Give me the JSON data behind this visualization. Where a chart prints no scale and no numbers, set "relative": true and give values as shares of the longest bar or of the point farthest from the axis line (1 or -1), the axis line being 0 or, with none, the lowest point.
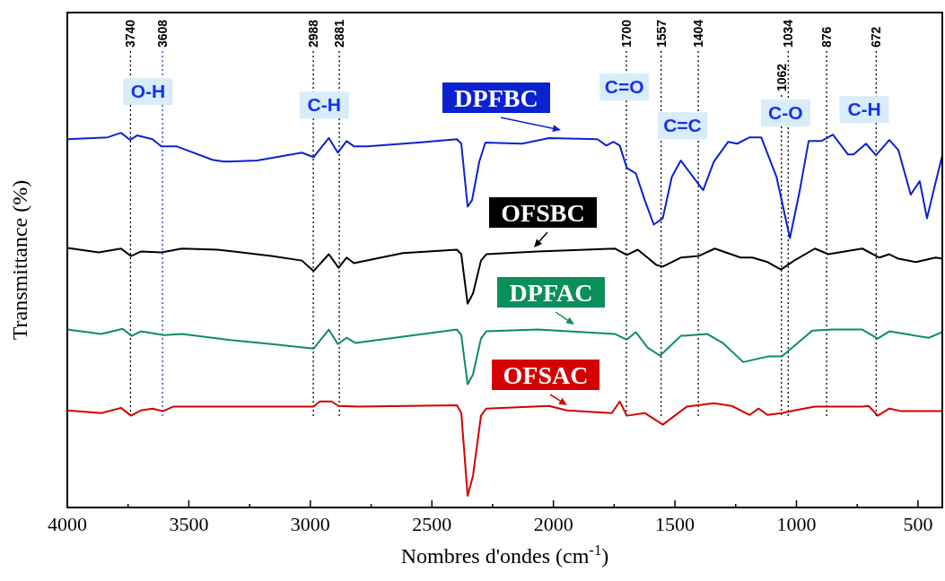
{
  "chart_data": {
    "type": "line",
    "relative": true,
    "xlabel": "Nombres d'ondes (cm$^{-1}$)",
    "ylabel": "Transmittance (%)",
    "xlim": [
      4000,
      400
    ],
    "xticks": [
      4000,
      {
        "value": 3750,
        "label": null
      },
      3500,
      {
        "value": 3250,
        "label": null
      },
      3000,
      {
        "value": 2750,
        "label": null
      },
      2500,
      {
        "value": 2250,
        "label": null
      },
      2000,
      {
        "value": 1750,
        "label": null
      },
      1500,
      {
        "value": 1250,
        "label": null
      },
      1000,
      {
        "value": 750,
        "label": null
      },
      500
    ],
    "grid": false,
    "marker": "none",
    "line_style": "solid",
    "series": [
      {
        "name": "DPFBC",
        "color": "#0a22d0",
        "x": [
          4000,
          3834,
          3779,
          3742,
          3713,
          3650,
          3613,
          3551,
          3403,
          3355,
          3219,
          3035,
          2987,
          2924,
          2887,
          2851,
          2821,
          2766,
          2556,
          2397,
          2379,
          2353,
          2335,
          2305,
          2280,
          2129,
          2018,
          1819,
          1782,
          1753,
          1727,
          1698,
          1661,
          1624,
          1587,
          1550,
          1513,
          1476,
          1403,
          1384,
          1340,
          1281,
          1244,
          1193,
          1145,
          1082,
          1027,
          987,
          950,
          898,
          850,
          788,
          765,
          714,
          673,
          618,
          581,
          530,
          493,
          463,
          434,
          400
        ],
        "values": [
          0.983,
          0.988,
          1.0,
          0.981,
          0.993,
          0.983,
          0.964,
          0.964,
          0.928,
          0.923,
          0.926,
          0.947,
          0.935,
          0.986,
          0.947,
          0.978,
          0.964,
          0.964,
          0.974,
          0.983,
          0.971,
          0.803,
          0.82,
          0.923,
          0.974,
          0.971,
          0.986,
          0.983,
          0.966,
          0.976,
          0.966,
          0.906,
          0.892,
          0.82,
          0.755,
          0.772,
          0.882,
          0.926,
          0.863,
          0.847,
          0.923,
          0.976,
          0.971,
          0.988,
          0.988,
          0.882,
          0.719,
          0.844,
          0.978,
          0.978,
          0.995,
          0.942,
          0.942,
          0.971,
          0.94,
          0.981,
          0.954,
          0.835,
          0.871,
          0.772,
          0.851,
          0.94
        ]
      },
      {
        "name": "OFSBC",
        "color": "#000000",
        "x": [
          4000,
          3871,
          3779,
          3738,
          3698,
          3613,
          3528,
          3381,
          3160,
          3035,
          2987,
          2924,
          2884,
          2851,
          2821,
          2619,
          2397,
          2379,
          2353,
          2331,
          2298,
          2276,
          2066,
          1746,
          1698,
          1653,
          1613,
          1576,
          1550,
          1476,
          1403,
          1336,
          1230,
          1182,
          1119,
          1064,
          1009,
          924,
          869,
          729,
          659,
          618,
          581,
          508,
          427,
          400
        ],
        "values": [
          0.693,
          0.681,
          0.691,
          0.671,
          0.683,
          0.681,
          0.691,
          0.688,
          0.671,
          0.659,
          0.631,
          0.676,
          0.64,
          0.667,
          0.652,
          0.679,
          0.688,
          0.676,
          0.544,
          0.571,
          0.659,
          0.676,
          0.683,
          0.691,
          0.674,
          0.688,
          0.667,
          0.647,
          0.643,
          0.667,
          0.671,
          0.691,
          0.667,
          0.667,
          0.655,
          0.635,
          0.659,
          0.691,
          0.676,
          0.691,
          0.667,
          0.676,
          0.664,
          0.655,
          0.667,
          0.664
        ]
      },
      {
        "name": "DPFAC",
        "color": "#0a8f5a",
        "x": [
          4000,
          3860,
          3772,
          3735,
          3698,
          3602,
          3528,
          3344,
          3160,
          2987,
          2924,
          2887,
          2851,
          2814,
          2619,
          2397,
          2379,
          2353,
          2331,
          2298,
          2276,
          2066,
          1746,
          1698,
          1661,
          1613,
          1561,
          1476,
          1366,
          1303,
          1219,
          1119,
          1060,
          935,
          850,
          729,
          666,
          618,
          456,
          400
        ],
        "values": [
          0.475,
          0.463,
          0.477,
          0.458,
          0.47,
          0.46,
          0.463,
          0.448,
          0.436,
          0.424,
          0.475,
          0.436,
          0.453,
          0.439,
          0.456,
          0.475,
          0.46,
          0.329,
          0.355,
          0.451,
          0.47,
          0.475,
          0.463,
          0.448,
          0.468,
          0.427,
          0.405,
          0.458,
          0.463,
          0.439,
          0.388,
          0.403,
          0.403,
          0.472,
          0.475,
          0.475,
          0.451,
          0.47,
          0.453,
          0.468
        ]
      },
      {
        "name": "OFSAC",
        "color": "#d40000",
        "x": [
          4000,
          3860,
          3779,
          3738,
          3698,
          3650,
          3606,
          3565,
          2987,
          2961,
          2913,
          2884,
          2803,
          2397,
          2379,
          2353,
          2331,
          2298,
          2276,
          2018,
          1944,
          1760,
          1727,
          1698,
          1624,
          1550,
          1451,
          1340,
          1266,
          1193,
          1156,
          1119,
          1060,
          1009,
          924,
          729,
          703,
          666,
          618,
          567,
          400
        ],
        "values": [
          0.259,
          0.252,
          0.266,
          0.245,
          0.259,
          0.264,
          0.257,
          0.269,
          0.269,
          0.283,
          0.283,
          0.271,
          0.269,
          0.273,
          0.252,
          0.031,
          0.084,
          0.245,
          0.264,
          0.271,
          0.259,
          0.252,
          0.283,
          0.245,
          0.252,
          0.221,
          0.269,
          0.278,
          0.271,
          0.247,
          0.264,
          0.247,
          0.252,
          0.259,
          0.269,
          0.269,
          0.271,
          0.245,
          0.264,
          0.257,
          0.257
        ]
      }
    ],
    "ref_lines": [
      {
        "axis": "x",
        "value": 3740,
        "label": "3740",
        "color": "#000000",
        "line_style": "dotted"
      },
      {
        "axis": "x",
        "value": 3608,
        "label": "3608",
        "color": "#2030ff",
        "line_style": "dotted"
      },
      {
        "axis": "x",
        "value": 2988,
        "label": "2988",
        "color": "#000000",
        "line_style": "dotted"
      },
      {
        "axis": "x",
        "value": 2881,
        "label": "2881",
        "color": "#000000",
        "line_style": "dotted"
      },
      {
        "axis": "x",
        "value": 1700,
        "label": "1700",
        "color": "#000000",
        "line_style": "dotted"
      },
      {
        "axis": "x",
        "value": 1557,
        "label": "1557",
        "color": "#000000",
        "line_style": "dotted"
      },
      {
        "axis": "x",
        "value": 1404,
        "label": "1404",
        "color": "#000000",
        "line_style": "dotted"
      },
      {
        "axis": "x",
        "value": 1062,
        "label": "1062",
        "color": "#000000",
        "line_style": "dotted"
      },
      {
        "axis": "x",
        "value": 1034,
        "label": "1034",
        "color": "#000000",
        "line_style": "dotted"
      },
      {
        "axis": "x",
        "value": 876,
        "label": "876",
        "color": "#000000",
        "line_style": "dotted"
      },
      {
        "axis": "x",
        "value": 672,
        "label": "672",
        "color": "#000000",
        "line_style": "dotted"
      }
    ],
    "annotations": [
      "O-H",
      "C-H",
      "C=O",
      "C=C",
      "C-O",
      "C-H"
    ]
  }
}
